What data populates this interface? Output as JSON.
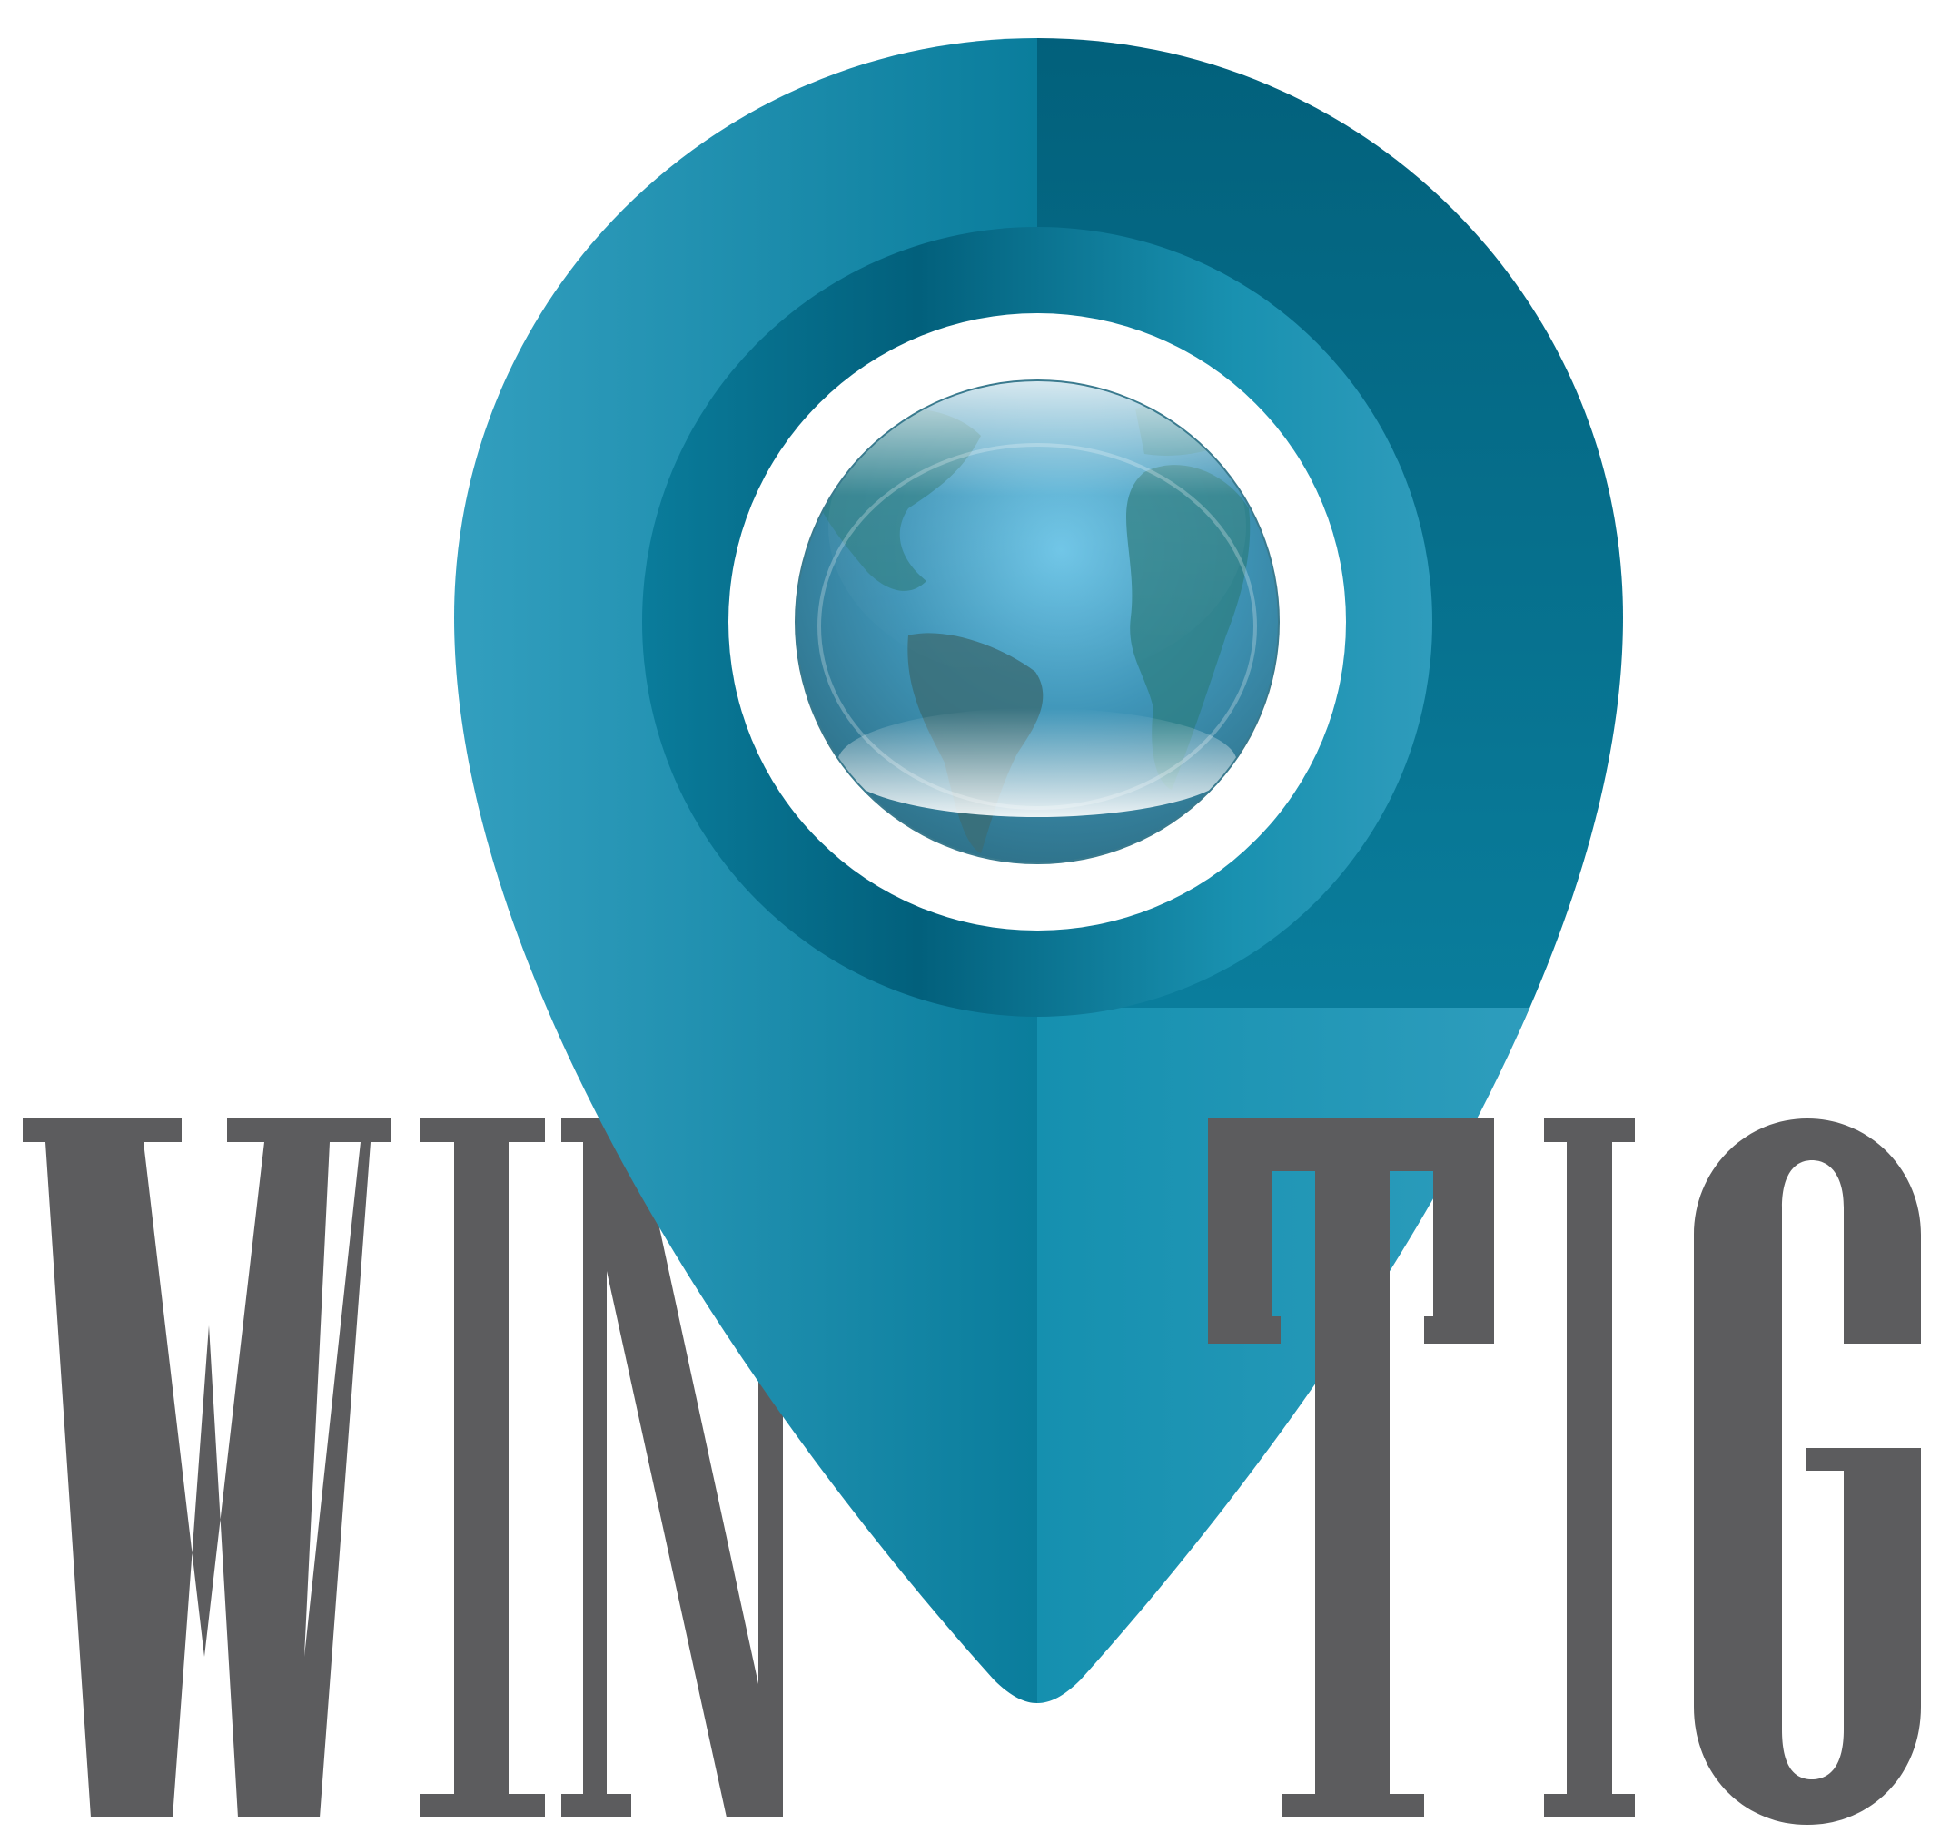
{
  "logo": {
    "wordmark_left": "WIN",
    "wordmark_right": "TIG"
  },
  "colors": {
    "background": "#ffffff",
    "wordmark": "#5c5c5e",
    "pin_light": "#34a0c0",
    "pin_mid": "#1b8fae",
    "pin_dark": "#036480",
    "ring_white": "#ffffff",
    "globe_ocean": "#4fa8cc",
    "globe_land": "#2f7f86"
  },
  "icons": {
    "pin": "location-pin-icon",
    "globe": "globe-icon"
  }
}
